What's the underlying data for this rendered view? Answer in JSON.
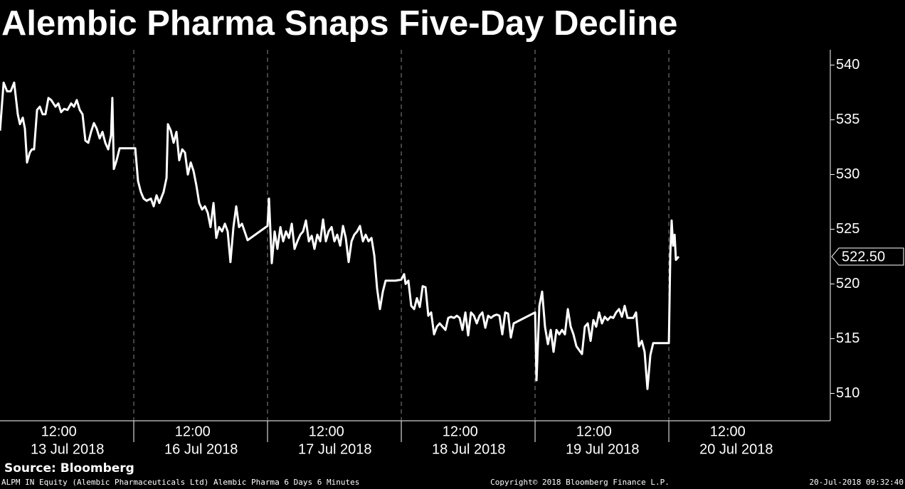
{
  "chart_data": {
    "type": "line",
    "title": "Alembic Pharma Snaps Five-Day Decline",
    "color": "#ffffff",
    "x": [
      0,
      0.027,
      0.053,
      0.08,
      0.106,
      0.133,
      0.149,
      0.17,
      0.186,
      0.202,
      0.223,
      0.239,
      0.255,
      0.277,
      0.298,
      0.319,
      0.34,
      0.362,
      0.383,
      0.415,
      0.436,
      0.457,
      0.479,
      0.505,
      0.532,
      0.553,
      0.574,
      0.596,
      0.617,
      0.638,
      0.66,
      0.681,
      0.702,
      0.723,
      0.745,
      0.766,
      0.787,
      0.809,
      0.83,
      0.84,
      0.851,
      0.872,
      0.894,
      0.936,
      1.011,
      1.032,
      1.053,
      1.074,
      1.096,
      1.128,
      1.149,
      1.17,
      1.191,
      1.223,
      1.245,
      1.255,
      1.277,
      1.298,
      1.319,
      1.34,
      1.362,
      1.383,
      1.404,
      1.426,
      1.447,
      1.468,
      1.489,
      1.511,
      1.532,
      1.553,
      1.574,
      1.596,
      1.617,
      1.638,
      1.66,
      1.681,
      1.702,
      1.723,
      1.745,
      1.766,
      1.787,
      1.809,
      1.851,
      2.0,
      2.011,
      2.032,
      2.053,
      2.074,
      2.096,
      2.117,
      2.138,
      2.16,
      2.181,
      2.202,
      2.223,
      2.245,
      2.266,
      2.287,
      2.309,
      2.33,
      2.351,
      2.372,
      2.394,
      2.415,
      2.436,
      2.457,
      2.479,
      2.5,
      2.521,
      2.543,
      2.564,
      2.585,
      2.606,
      2.628,
      2.649,
      2.67,
      2.691,
      2.713,
      2.734,
      2.755,
      2.777,
      2.798,
      2.819,
      2.84,
      2.862,
      2.883,
      2.957,
      3.0,
      3.021,
      3.032,
      3.053,
      3.074,
      3.096,
      3.117,
      3.138,
      3.16,
      3.181,
      3.202,
      3.223,
      3.245,
      3.266,
      3.287,
      3.309,
      3.33,
      3.351,
      3.372,
      3.394,
      3.415,
      3.436,
      3.457,
      3.479,
      3.5,
      3.521,
      3.543,
      3.564,
      3.585,
      3.606,
      3.628,
      3.649,
      3.67,
      3.691,
      3.713,
      3.734,
      3.755,
      3.777,
      3.798,
      3.819,
      3.84,
      4.0,
      4.011,
      4.032,
      4.053,
      4.074,
      4.096,
      4.117,
      4.138,
      4.16,
      4.181,
      4.202,
      4.223,
      4.245,
      4.266,
      4.287,
      4.309,
      4.351,
      4.372,
      4.394,
      4.415,
      4.436,
      4.457,
      4.479,
      4.5,
      4.521,
      4.543,
      4.564,
      4.585,
      4.606,
      4.628,
      4.649,
      4.67,
      4.691,
      4.734,
      4.755,
      4.777,
      4.798,
      4.819,
      4.84,
      4.862,
      4.883,
      4.979,
      5.0,
      5.011,
      5.021,
      5.032,
      5.043,
      5.053,
      5.074
    ],
    "values": [
      534.0,
      538.4,
      537.6,
      537.6,
      538.4,
      535.5,
      534.6,
      535.2,
      534.2,
      531.1,
      532.0,
      532.3,
      532.3,
      535.9,
      536.2,
      535.5,
      535.5,
      537.0,
      536.8,
      536.2,
      536.5,
      535.7,
      536.0,
      535.9,
      536.5,
      536.2,
      536.8,
      535.9,
      535.5,
      533.1,
      532.9,
      533.9,
      534.7,
      534.2,
      533.3,
      533.9,
      532.9,
      532.3,
      533.6,
      537.0,
      530.5,
      531.3,
      532.4,
      532.4,
      532.4,
      529.4,
      528.4,
      527.8,
      527.6,
      527.8,
      527.1,
      528.1,
      527.4,
      528.4,
      529.7,
      534.6,
      534.0,
      532.9,
      533.9,
      531.3,
      532.3,
      532.0,
      530.0,
      531.1,
      530.3,
      529.0,
      527.4,
      526.8,
      527.1,
      526.5,
      525.2,
      527.4,
      524.2,
      525.2,
      524.8,
      525.5,
      524.8,
      522.0,
      525.2,
      527.1,
      525.2,
      525.5,
      524.0,
      525.3,
      527.8,
      521.9,
      524.8,
      523.2,
      525.2,
      523.9,
      524.8,
      524.2,
      525.5,
      523.2,
      523.9,
      524.5,
      524.8,
      525.8,
      523.9,
      524.4,
      523.2,
      524.5,
      523.9,
      525.9,
      523.9,
      524.8,
      525.2,
      523.9,
      524.5,
      523.5,
      525.3,
      524.2,
      522.0,
      523.9,
      524.5,
      524.8,
      525.3,
      523.9,
      524.5,
      523.9,
      524.2,
      522.6,
      519.6,
      517.7,
      519.3,
      520.3,
      520.3,
      520.4,
      520.9,
      520.0,
      520.3,
      518.0,
      517.7,
      518.7,
      517.9,
      519.8,
      519.7,
      517.1,
      517.4,
      515.4,
      516.1,
      516.4,
      516.1,
      515.8,
      516.9,
      517.0,
      516.9,
      517.1,
      516.9,
      515.8,
      517.4,
      515.3,
      517.4,
      517.1,
      516.4,
      517.1,
      517.4,
      516.0,
      517.1,
      516.9,
      517.1,
      517.2,
      517.1,
      515.4,
      517.4,
      517.3,
      515.1,
      516.4,
      517.4,
      511.2,
      518.0,
      519.3,
      516.1,
      514.5,
      515.8,
      513.8,
      515.8,
      515.4,
      515.8,
      515.4,
      517.7,
      516.1,
      515.4,
      514.3,
      513.6,
      516.1,
      516.4,
      514.8,
      516.7,
      516.1,
      517.4,
      516.4,
      517.0,
      516.7,
      517.0,
      516.9,
      517.4,
      517.7,
      517.0,
      518.0,
      516.9,
      516.9,
      517.4,
      514.3,
      514.8,
      513.8,
      510.4,
      513.5,
      514.6,
      514.6,
      514.6,
      522.6,
      525.8,
      523.5,
      524.5,
      522.2,
      522.5
    ],
    "xlim": [
      0,
      6.207
    ],
    "xticks": [
      {
        "value": 0.44,
        "label": "12:00"
      },
      {
        "value": 1.44,
        "label": "12:00"
      },
      {
        "value": 2.44,
        "label": "12:00"
      },
      {
        "value": 3.44,
        "label": "12:00"
      },
      {
        "value": 4.44,
        "label": "12:00"
      },
      {
        "value": 5.44,
        "label": "12:00"
      }
    ],
    "dates": [
      "13 Jul 2018",
      "16 Jul 2018",
      "17 Jul 2018",
      "18 Jul 2018",
      "19 Jul 2018",
      "20 Jul 2018"
    ],
    "day_dividers": [
      1,
      2,
      3,
      4,
      5
    ],
    "ylim": [
      507.5,
      541.4
    ],
    "yticks": [
      510,
      515,
      520,
      525,
      530,
      535,
      540
    ],
    "last_label": {
      "value": 522.5,
      "label": "522.50"
    }
  },
  "source": "Source: Bloomberg",
  "footer": {
    "left": "ALPM IN Equity (Alembic Pharmaceuticals Ltd) Alembic Pharma 6 Days 6 Minutes",
    "center": "Copyright© 2018 Bloomberg Finance L.P.",
    "right": "20-Jul-2018 09:32:40"
  }
}
